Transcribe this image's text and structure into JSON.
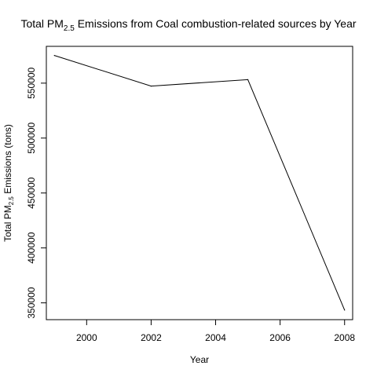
{
  "chart_data": {
    "type": "line",
    "title": {
      "prefix": "Total  PM",
      "subscript": "2.5",
      "suffix": " Emissions from Coal combustion-related sources by Year"
    },
    "xlabel": "Year",
    "ylabel": {
      "prefix": "Total PM",
      "subscript": "2.5",
      "suffix": " Emissions (tons)"
    },
    "xlim": [
      1998.75,
      2008.25
    ],
    "ylim": [
      334700,
      583500
    ],
    "x_ticks": [
      2000,
      2002,
      2004,
      2006,
      2008
    ],
    "y_ticks": [
      350000,
      400000,
      450000,
      500000,
      550000
    ],
    "series": [
      {
        "x": [
          1999,
          2002,
          2005,
          2008
        ],
        "values": [
          575200,
          547300,
          553200,
          343400
        ],
        "color": "#000000"
      }
    ],
    "grid": false,
    "legend": "none"
  }
}
